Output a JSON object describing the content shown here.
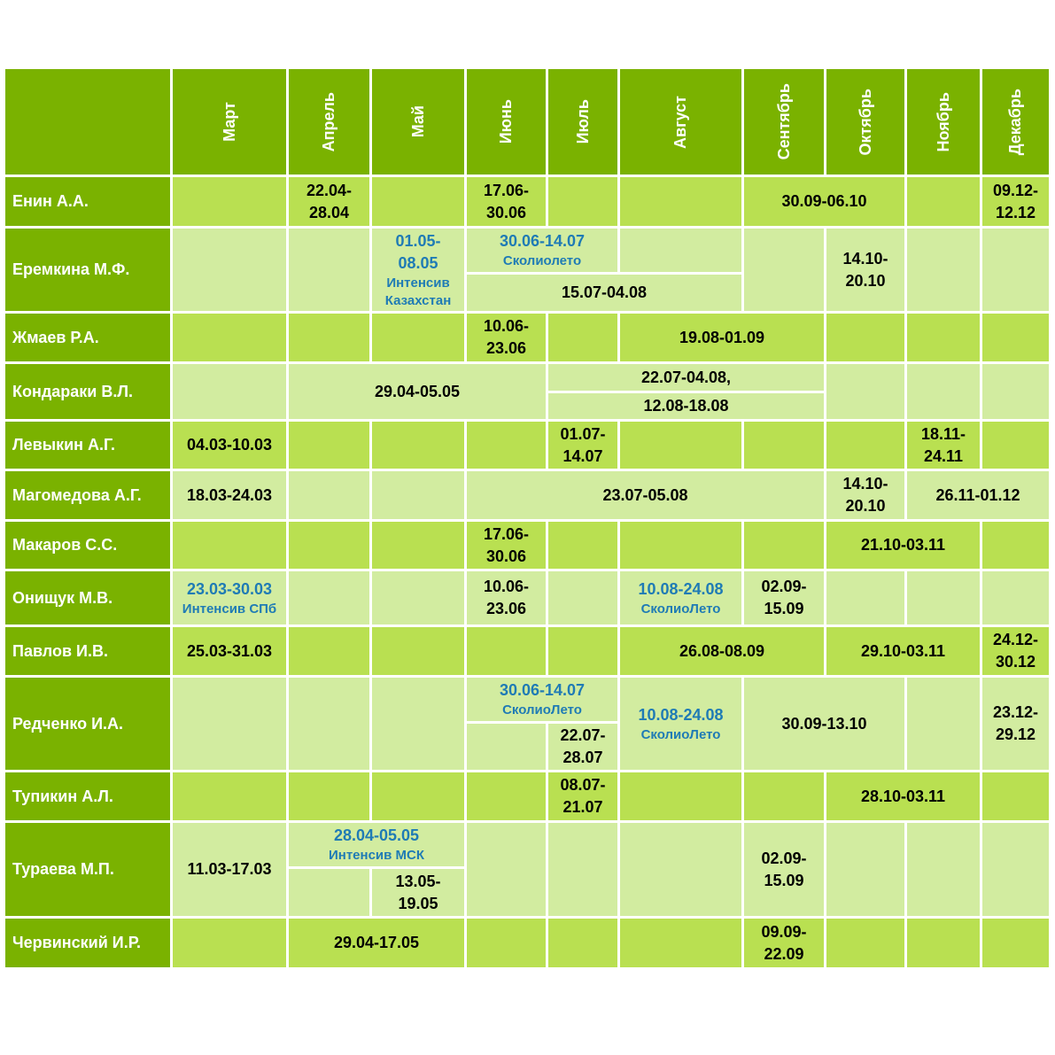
{
  "months": [
    "Март",
    "Апрель",
    "Май",
    "Июнь",
    "Июль",
    "Август",
    "Сентябрь",
    "Октябрь",
    "Ноябрь",
    "Декабрь"
  ],
  "colors": {
    "header": "#7ab200",
    "row_dark": "#b9e051",
    "row_light": "#d2eca0",
    "accent_text": "#1f7bb5",
    "name_text": "#ffffff"
  },
  "rows": [
    {
      "name": "Енин А.А.",
      "events": [
        {
          "col": 1,
          "span": 1,
          "text": "22.04-\n28.04"
        },
        {
          "col": 3,
          "span": 1,
          "text": "17.06-\n30.06"
        },
        {
          "col": 6,
          "span": 2,
          "text": "30.09-06.10"
        },
        {
          "col": 9,
          "span": 1,
          "text": "09.12-\n12.12"
        }
      ]
    },
    {
      "name": "Еремкина М.Ф.",
      "events": [
        {
          "col": 2,
          "span": 1,
          "text": "01.05-\n08.05",
          "note": "Интенсив\nКазахстан",
          "blue": true
        },
        {
          "col": 3,
          "span": 2,
          "sub": "top",
          "text": "30.06-14.07",
          "note": "Сколиолето",
          "blue": true
        },
        {
          "col": 3,
          "span": 3,
          "sub": "bottom",
          "text": "15.07-04.08"
        },
        {
          "col": 7,
          "span": 1,
          "text": "14.10-\n20.10"
        }
      ]
    },
    {
      "name": "Жмаев Р.А.",
      "events": [
        {
          "col": 3,
          "span": 1,
          "text": "10.06-\n23.06"
        },
        {
          "col": 5,
          "span": 2,
          "text": "19.08-01.09"
        }
      ]
    },
    {
      "name": "Кондараки В.Л.",
      "events": [
        {
          "col": 1,
          "span": 3,
          "text": "29.04-05.05"
        },
        {
          "col": 4,
          "span": 3,
          "sub": "top",
          "text": "22.07-04.08,"
        },
        {
          "col": 4,
          "span": 3,
          "sub": "bottom",
          "text": "12.08-18.08"
        }
      ]
    },
    {
      "name": "Левыкин А.Г.",
      "events": [
        {
          "col": 0,
          "span": 1,
          "text": "04.03-10.03"
        },
        {
          "col": 4,
          "span": 1,
          "text": "01.07-\n14.07"
        },
        {
          "col": 8,
          "span": 1,
          "text": "18.11-\n24.11"
        }
      ]
    },
    {
      "name": "Магомедова А.Г.",
      "events": [
        {
          "col": 0,
          "span": 1,
          "text": "18.03-24.03"
        },
        {
          "col": 3,
          "span": 4,
          "text": "23.07-05.08"
        },
        {
          "col": 7,
          "span": 1,
          "text": "14.10-\n20.10"
        },
        {
          "col": 8,
          "span": 2,
          "text": "26.11-01.12"
        }
      ]
    },
    {
      "name": "Макаров С.С.",
      "events": [
        {
          "col": 3,
          "span": 1,
          "text": "17.06-\n30.06"
        },
        {
          "col": 7,
          "span": 2,
          "text": "21.10-03.11"
        }
      ]
    },
    {
      "name": "Онищук М.В.",
      "events": [
        {
          "col": 0,
          "span": 1,
          "text": "23.03-30.03",
          "note": "Интенсив СПб",
          "blue": true
        },
        {
          "col": 3,
          "span": 1,
          "text": "10.06-\n23.06"
        },
        {
          "col": 5,
          "span": 1,
          "text": "10.08-24.08",
          "note": "СколиоЛето",
          "blue": true
        },
        {
          "col": 6,
          "span": 1,
          "text": "02.09-\n15.09"
        }
      ]
    },
    {
      "name": "Павлов И.В.",
      "events": [
        {
          "col": 0,
          "span": 1,
          "text": "25.03-31.03"
        },
        {
          "col": 5,
          "span": 2,
          "text": "26.08-08.09"
        },
        {
          "col": 7,
          "span": 2,
          "text": "29.10-03.11"
        },
        {
          "col": 9,
          "span": 1,
          "text": "24.12-\n30.12"
        }
      ]
    },
    {
      "name": "Редченко И.А.",
      "events": [
        {
          "col": 3,
          "span": 2,
          "sub": "top",
          "text": "30.06-14.07",
          "note": "СколиоЛето",
          "blue": true
        },
        {
          "col": 4,
          "span": 1,
          "sub": "bottom",
          "text": "22.07-\n28.07"
        },
        {
          "col": 5,
          "span": 1,
          "text": "10.08-24.08",
          "note": "СколиоЛето",
          "blue": true
        },
        {
          "col": 6,
          "span": 2,
          "text": "30.09-13.10"
        },
        {
          "col": 9,
          "span": 1,
          "text": "23.12-\n29.12"
        }
      ]
    },
    {
      "name": "Тупикин А.Л.",
      "events": [
        {
          "col": 4,
          "span": 1,
          "text": "08.07-\n21.07"
        },
        {
          "col": 7,
          "span": 2,
          "text": "28.10-03.11"
        }
      ]
    },
    {
      "name": "Тураева М.П.",
      "events": [
        {
          "col": 0,
          "span": 1,
          "text": "11.03-17.03"
        },
        {
          "col": 1,
          "span": 2,
          "sub": "top",
          "text": "28.04-05.05",
          "note": "Интенсив МСК",
          "blue": true
        },
        {
          "col": 2,
          "span": 1,
          "sub": "bottom",
          "text": "13.05-\n19.05"
        },
        {
          "col": 6,
          "span": 1,
          "text": "02.09-\n15.09"
        }
      ]
    },
    {
      "name": "Червинский И.Р.",
      "events": [
        {
          "col": 1,
          "span": 2,
          "text": "29.04-17.05"
        },
        {
          "col": 6,
          "span": 1,
          "text": "09.09-\n22.09"
        }
      ]
    }
  ]
}
